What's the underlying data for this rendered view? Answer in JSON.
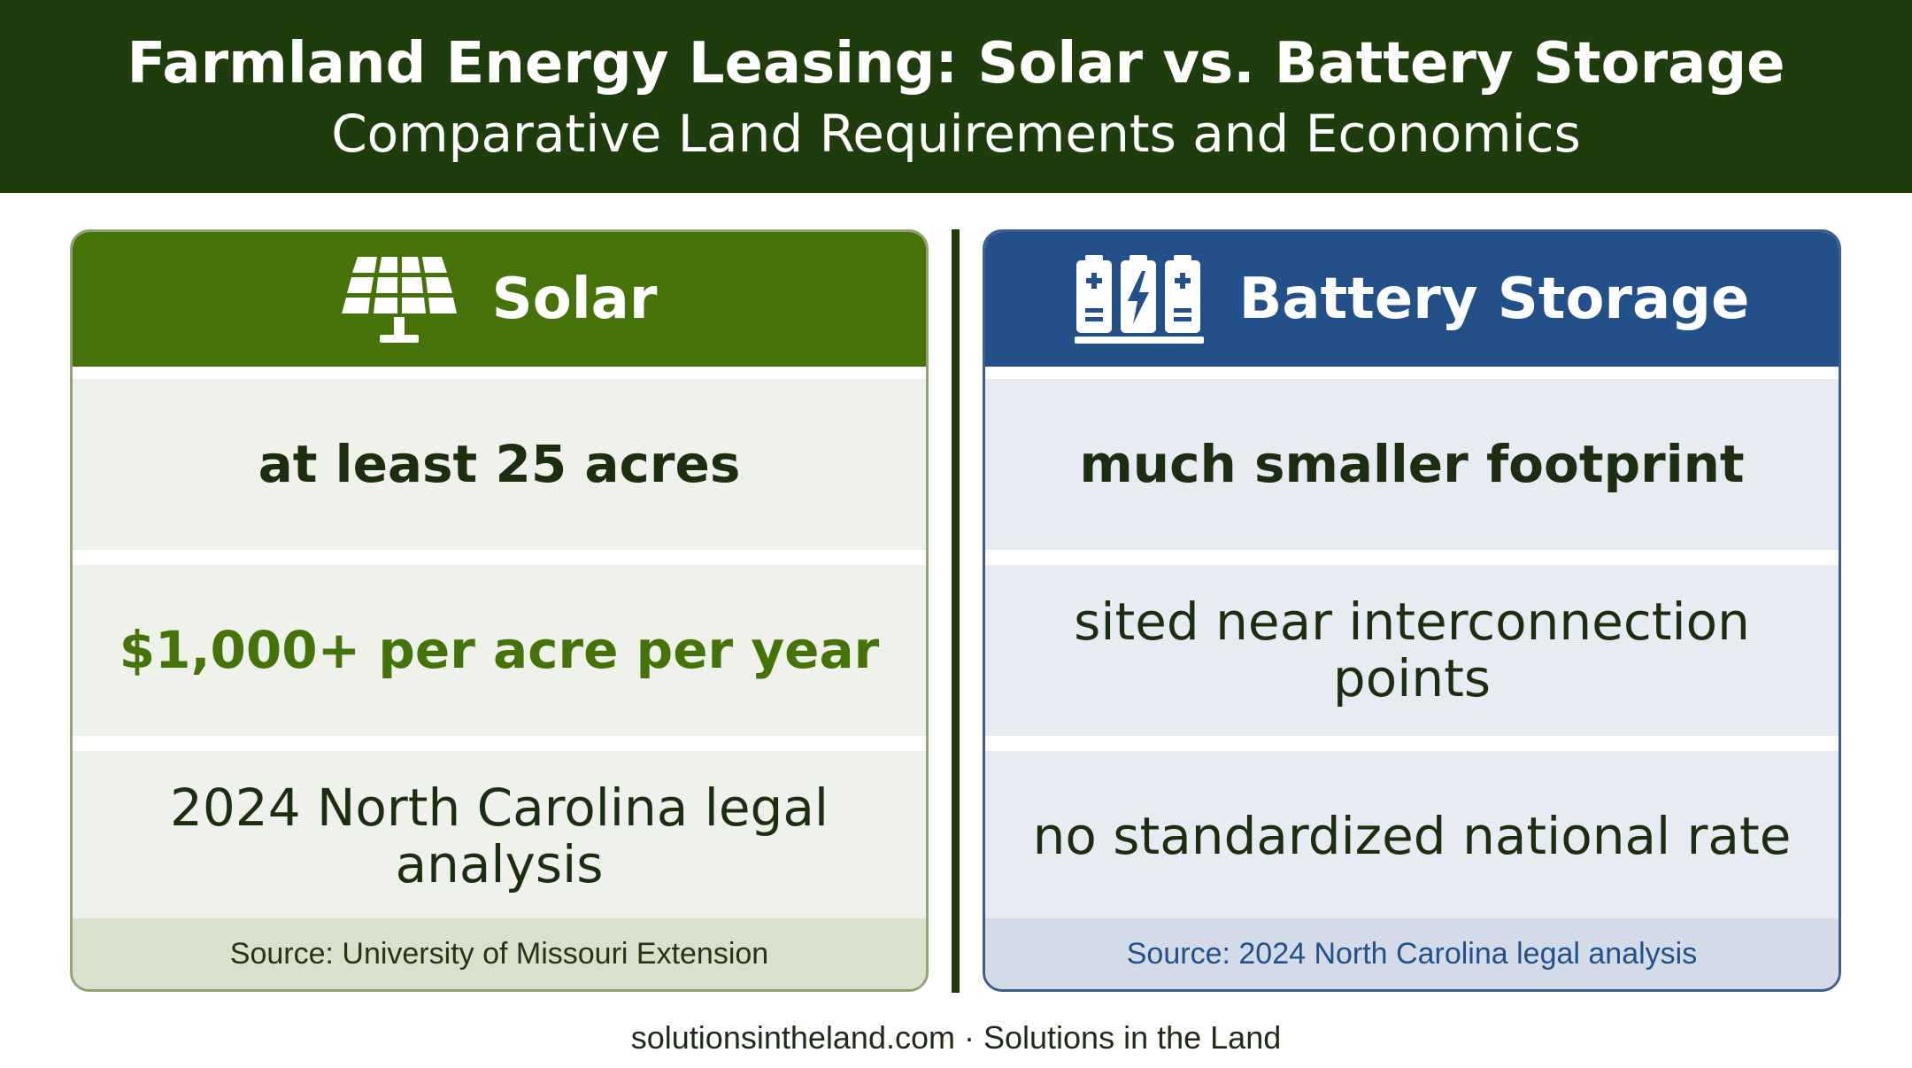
{
  "header": {
    "title": "Farmland Energy Leasing: Solar vs. Battery Storage",
    "subtitle": "Comparative Land Requirements and Economics"
  },
  "colors": {
    "header_bg": "#1f3d0c",
    "solar_accent": "#46720a",
    "battery_accent": "#24508a"
  },
  "solar": {
    "icon": "solar-panel-icon",
    "label": "Solar",
    "rows": [
      "at least 25 acres",
      "$1,000+ per acre per year",
      "2024 North Carolina legal analysis"
    ],
    "source": "Source: University of Missouri Extension"
  },
  "battery": {
    "icon": "battery-storage-icon",
    "label": "Battery Storage",
    "rows": [
      "much smaller footprint",
      "sited near interconnection points",
      "no standardized national rate"
    ],
    "source": "Source: 2024 North Carolina legal analysis"
  },
  "footer": {
    "text": "solutionsintheland.com · Solutions in the Land"
  }
}
